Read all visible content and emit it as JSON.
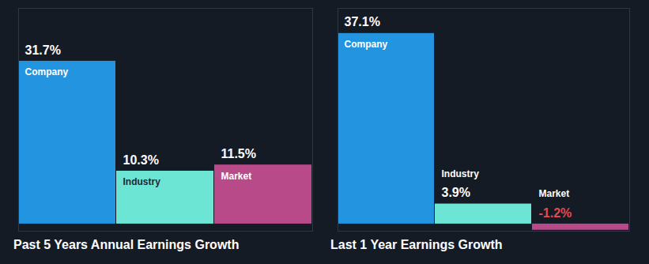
{
  "chart_data": [
    {
      "type": "bar",
      "title": "Past 5 Years Annual Earnings Growth",
      "categories": [
        "Company",
        "Industry",
        "Market"
      ],
      "values": [
        31.7,
        10.3,
        11.5
      ],
      "value_labels": [
        "31.7%",
        "10.3%",
        "11.5%"
      ],
      "colors": [
        "#2394df",
        "#6ce5d5",
        "#b94a89"
      ],
      "ylim": [
        -1.4,
        42
      ],
      "yticks": [],
      "tick_labels": false,
      "data_labels": true
    },
    {
      "type": "bar",
      "title": "Last 1 Year Earnings Growth",
      "categories": [
        "Company",
        "Industry",
        "Market"
      ],
      "values": [
        37.1,
        3.9,
        -1.2
      ],
      "value_labels": [
        "37.1%",
        "3.9%",
        "-1.2%"
      ],
      "colors": [
        "#2394df",
        "#6ce5d5",
        "#b94a89"
      ],
      "ylim": [
        -1.4,
        42
      ],
      "yticks": [],
      "tick_labels": false,
      "data_labels": true
    }
  ]
}
